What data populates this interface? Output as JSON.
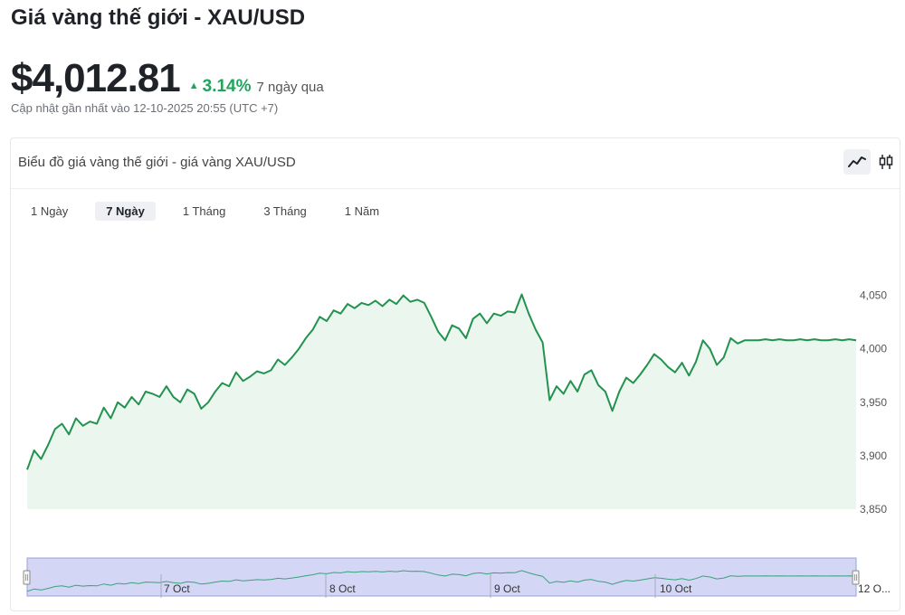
{
  "header": {
    "title": "Giá vàng thế giới - XAU/USD",
    "price": "$4,012.81",
    "change": "3.14%",
    "period": "7 ngày qua",
    "updated": "Cập nhật gần nhất vào 12-10-2025 20:55 (UTC +7)"
  },
  "card": {
    "title": "Biểu đồ giá vàng thế giới - giá vàng XAU/USD",
    "chart_type_buttons": [
      {
        "icon": "line-chart-icon",
        "active": true
      },
      {
        "icon": "candlestick-icon",
        "active": false
      }
    ],
    "range_tabs": [
      {
        "label": "1 Ngày",
        "active": false
      },
      {
        "label": "7 Ngày",
        "active": true
      },
      {
        "label": "1 Tháng",
        "active": false
      },
      {
        "label": "3 Tháng",
        "active": false
      },
      {
        "label": "1 Năm",
        "active": false
      }
    ]
  },
  "colors": {
    "line": "#22934f",
    "fill": "#eaf6ee",
    "up": "#22a45d",
    "navigator_fill": "#d3d7f5",
    "navigator_line": "#3aa17a"
  },
  "chart_data": {
    "type": "area",
    "title": "",
    "xlabel": "",
    "ylabel": "",
    "ylim": [
      3850,
      4070
    ],
    "yticks": [
      3850,
      3900,
      3950,
      4000,
      4050
    ],
    "ytick_labels": [
      "3,850",
      "3,900",
      "3,950",
      "4,000",
      "4,050"
    ],
    "grid": false,
    "navigator_labels": [
      "7 Oct",
      "8 Oct",
      "9 Oct",
      "10 Oct",
      "12 O..."
    ],
    "series": [
      {
        "x": [
          0,
          1,
          2,
          3,
          4,
          5,
          6,
          7,
          8,
          9,
          10,
          11,
          12,
          13,
          14,
          15,
          16,
          17,
          18,
          19,
          20,
          21,
          22,
          23,
          24,
          25,
          26,
          27,
          28,
          29,
          30,
          31,
          32,
          33,
          34,
          35,
          36,
          37,
          38,
          39,
          40,
          41,
          42,
          43,
          44,
          45,
          46,
          47,
          48,
          49,
          50,
          51,
          52,
          53,
          54,
          55,
          56,
          57,
          58,
          59,
          60,
          61,
          62,
          63,
          64,
          65,
          66,
          67,
          68,
          69,
          70,
          71,
          72,
          73,
          74,
          75,
          76,
          77,
          78,
          79,
          80,
          81,
          82,
          83,
          84,
          85,
          86,
          87,
          88,
          89,
          90,
          91,
          92,
          93,
          94,
          95,
          96,
          97,
          98,
          99,
          100,
          101,
          102,
          103,
          104,
          105,
          106,
          107,
          108,
          109,
          110,
          111,
          112,
          113,
          114,
          115,
          116,
          117,
          118,
          119
        ],
        "values": [
          3887,
          3905,
          3897,
          3910,
          3925,
          3930,
          3920,
          3935,
          3928,
          3932,
          3930,
          3945,
          3935,
          3950,
          3945,
          3955,
          3948,
          3960,
          3958,
          3955,
          3965,
          3955,
          3950,
          3962,
          3958,
          3944,
          3950,
          3960,
          3968,
          3965,
          3978,
          3970,
          3974,
          3979,
          3977,
          3980,
          3990,
          3985,
          3992,
          4000,
          4010,
          4018,
          4030,
          4026,
          4036,
          4033,
          4042,
          4038,
          4043,
          4041,
          4045,
          4040,
          4046,
          4042,
          4050,
          4044,
          4046,
          4043,
          4030,
          4016,
          4008,
          4022,
          4019,
          4010,
          4028,
          4033,
          4024,
          4033,
          4031,
          4035,
          4034,
          4051,
          4033,
          4018,
          4006,
          3952,
          3965,
          3958,
          3970,
          3960,
          3976,
          3980,
          3966,
          3960,
          3942,
          3960,
          3973,
          3968,
          3976,
          3985,
          3995,
          3990,
          3983,
          3978,
          3987,
          3975,
          3988,
          4008,
          4000,
          3985,
          3992,
          4010,
          4005,
          4008,
          4008,
          4008,
          4009,
          4008,
          4009,
          4008,
          4008,
          4009,
          4008,
          4009,
          4008,
          4008,
          4009,
          4008,
          4009,
          4008
        ]
      }
    ]
  }
}
